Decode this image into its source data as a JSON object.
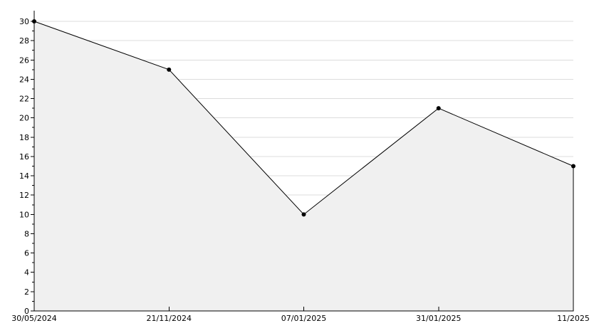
{
  "chart_data": {
    "type": "area",
    "title": "",
    "xlabel": "",
    "ylabel": "",
    "categories": [
      "30/05/2024",
      "21/11/2024",
      "07/01/2025",
      "31/01/2025",
      "11/2025"
    ],
    "values": [
      30,
      25,
      10,
      21,
      15
    ],
    "ylim": [
      0,
      30
    ],
    "y_major_step": 2,
    "y_minor_step": 1,
    "grid": true,
    "legend_position": "none",
    "colors": {
      "background": "#ffffff",
      "fill": "#f0f0f0",
      "line": "#000000",
      "marker": "#000000",
      "grid": "#dcdcdc",
      "axis": "#000000",
      "text": "#000000"
    }
  }
}
